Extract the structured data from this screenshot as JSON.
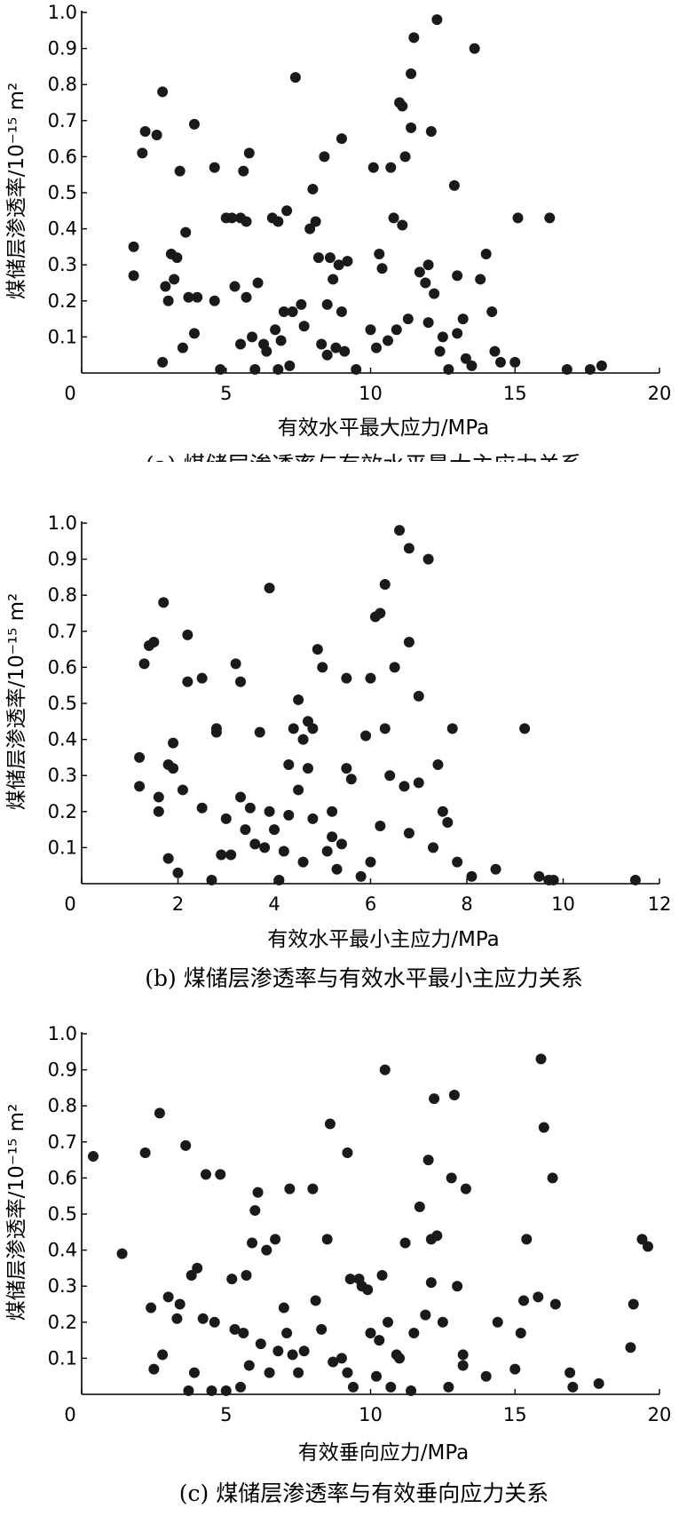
{
  "chart_data": [
    {
      "type": "scatter",
      "xlabel": "有效水平最大应力/MPa",
      "ylabel": "煤储层渗透率/10⁻¹⁵ m²",
      "caption": "(a) 煤储层渗透率与有效水平最大主应力关系",
      "xlim": [
        0,
        20
      ],
      "ylim": [
        0,
        1.0
      ],
      "xticks": [
        "0",
        "5",
        "10",
        "15",
        "20"
      ],
      "yticks": [
        "0.1",
        "0.2",
        "0.3",
        "0.4",
        "0.5",
        "0.6",
        "0.7",
        "0.8",
        "0.9",
        "1.0"
      ],
      "points": [
        [
          1.8,
          0.35
        ],
        [
          1.8,
          0.27
        ],
        [
          2.1,
          0.61
        ],
        [
          2.2,
          0.67
        ],
        [
          2.6,
          0.66
        ],
        [
          2.8,
          0.78
        ],
        [
          2.8,
          0.03
        ],
        [
          2.9,
          0.24
        ],
        [
          3.0,
          0.2
        ],
        [
          3.1,
          0.33
        ],
        [
          3.2,
          0.26
        ],
        [
          3.3,
          0.32
        ],
        [
          3.4,
          0.56
        ],
        [
          3.5,
          0.07
        ],
        [
          3.6,
          0.39
        ],
        [
          3.7,
          0.21
        ],
        [
          3.9,
          0.69
        ],
        [
          3.9,
          0.11
        ],
        [
          4.0,
          0.21
        ],
        [
          4.6,
          0.57
        ],
        [
          4.6,
          0.2
        ],
        [
          4.8,
          0.01
        ],
        [
          5.0,
          0.43
        ],
        [
          5.2,
          0.43
        ],
        [
          5.3,
          0.24
        ],
        [
          5.5,
          0.08
        ],
        [
          5.5,
          0.43
        ],
        [
          5.6,
          0.56
        ],
        [
          5.7,
          0.42
        ],
        [
          5.7,
          0.21
        ],
        [
          5.8,
          0.61
        ],
        [
          5.9,
          0.1
        ],
        [
          6.0,
          0.01
        ],
        [
          6.1,
          0.25
        ],
        [
          6.3,
          0.08
        ],
        [
          6.4,
          0.06
        ],
        [
          6.6,
          0.43
        ],
        [
          6.7,
          0.12
        ],
        [
          6.8,
          0.42
        ],
        [
          6.8,
          0.01
        ],
        [
          6.9,
          0.09
        ],
        [
          7.0,
          0.17
        ],
        [
          7.1,
          0.45
        ],
        [
          7.2,
          0.02
        ],
        [
          7.3,
          0.17
        ],
        [
          7.4,
          0.82
        ],
        [
          7.6,
          0.19
        ],
        [
          7.7,
          0.13
        ],
        [
          7.9,
          0.4
        ],
        [
          8.0,
          0.51
        ],
        [
          8.1,
          0.42
        ],
        [
          8.2,
          0.32
        ],
        [
          8.3,
          0.08
        ],
        [
          8.4,
          0.6
        ],
        [
          8.5,
          0.19
        ],
        [
          8.5,
          0.05
        ],
        [
          8.6,
          0.32
        ],
        [
          8.7,
          0.26
        ],
        [
          8.8,
          0.07
        ],
        [
          8.9,
          0.3
        ],
        [
          9.0,
          0.65
        ],
        [
          9.0,
          0.17
        ],
        [
          9.1,
          0.06
        ],
        [
          9.2,
          0.31
        ],
        [
          9.5,
          0.01
        ],
        [
          10.0,
          0.12
        ],
        [
          10.1,
          0.57
        ],
        [
          10.2,
          0.07
        ],
        [
          10.3,
          0.33
        ],
        [
          10.4,
          0.29
        ],
        [
          10.6,
          0.09
        ],
        [
          10.7,
          0.57
        ],
        [
          10.8,
          0.43
        ],
        [
          10.9,
          0.12
        ],
        [
          11.0,
          0.75
        ],
        [
          11.1,
          0.74
        ],
        [
          11.1,
          0.41
        ],
        [
          11.2,
          0.6
        ],
        [
          11.3,
          0.15
        ],
        [
          11.4,
          0.83
        ],
        [
          11.5,
          0.93
        ],
        [
          11.7,
          0.28
        ],
        [
          11.9,
          0.25
        ],
        [
          12.0,
          0.3
        ],
        [
          12.0,
          0.14
        ],
        [
          12.1,
          0.67
        ],
        [
          12.2,
          0.22
        ],
        [
          12.3,
          0.98
        ],
        [
          12.5,
          0.1
        ],
        [
          12.7,
          0.01
        ],
        [
          12.9,
          0.52
        ],
        [
          13.0,
          0.11
        ],
        [
          13.0,
          0.27
        ],
        [
          13.2,
          0.15
        ],
        [
          13.3,
          0.04
        ],
        [
          13.5,
          0.02
        ],
        [
          13.6,
          0.9
        ],
        [
          13.8,
          0.26
        ],
        [
          14.0,
          0.33
        ],
        [
          14.2,
          0.17
        ],
        [
          14.3,
          0.06
        ],
        [
          14.5,
          0.03
        ],
        [
          15.0,
          0.03
        ],
        [
          15.1,
          0.43
        ],
        [
          16.2,
          0.43
        ],
        [
          16.8,
          0.01
        ],
        [
          17.6,
          0.01
        ],
        [
          18.0,
          0.02
        ],
        [
          11.4,
          0.68
        ],
        [
          12.4,
          0.06
        ]
      ]
    },
    {
      "type": "scatter",
      "xlabel": "有效水平最小主应力/MPa",
      "ylabel": "煤储层渗透率/10⁻¹⁵ m²",
      "caption": "(b) 煤储层渗透率与有效水平最小主应力关系",
      "xlim": [
        0,
        12
      ],
      "ylim": [
        0,
        1.0
      ],
      "xticks": [
        "0",
        "2",
        "4",
        "6",
        "8",
        "10",
        "12"
      ],
      "yticks": [
        "0.1",
        "0.2",
        "0.3",
        "0.4",
        "0.5",
        "0.6",
        "0.7",
        "0.8",
        "0.9",
        "1.0"
      ],
      "points": [
        [
          1.2,
          0.35
        ],
        [
          1.2,
          0.27
        ],
        [
          1.3,
          0.61
        ],
        [
          1.4,
          0.66
        ],
        [
          1.5,
          0.67
        ],
        [
          1.6,
          0.2
        ],
        [
          1.6,
          0.24
        ],
        [
          1.7,
          0.78
        ],
        [
          1.8,
          0.07
        ],
        [
          1.8,
          0.33
        ],
        [
          1.9,
          0.32
        ],
        [
          1.9,
          0.39
        ],
        [
          2.0,
          0.03
        ],
        [
          2.1,
          0.26
        ],
        [
          2.2,
          0.69
        ],
        [
          2.2,
          0.56
        ],
        [
          2.5,
          0.21
        ],
        [
          2.5,
          0.57
        ],
        [
          2.7,
          0.01
        ],
        [
          2.8,
          0.43
        ],
        [
          2.8,
          0.42
        ],
        [
          2.9,
          0.08
        ],
        [
          3.0,
          0.18
        ],
        [
          3.1,
          0.08
        ],
        [
          3.2,
          0.61
        ],
        [
          3.3,
          0.24
        ],
        [
          3.3,
          0.56
        ],
        [
          3.4,
          0.15
        ],
        [
          3.5,
          0.21
        ],
        [
          3.6,
          0.11
        ],
        [
          3.7,
          0.42
        ],
        [
          3.8,
          0.1
        ],
        [
          3.9,
          0.2
        ],
        [
          3.9,
          0.82
        ],
        [
          4.0,
          0.15
        ],
        [
          4.1,
          0.01
        ],
        [
          4.2,
          0.09
        ],
        [
          4.3,
          0.33
        ],
        [
          4.3,
          0.19
        ],
        [
          4.4,
          0.43
        ],
        [
          4.5,
          0.51
        ],
        [
          4.5,
          0.26
        ],
        [
          4.6,
          0.06
        ],
        [
          4.6,
          0.4
        ],
        [
          4.7,
          0.45
        ],
        [
          4.7,
          0.32
        ],
        [
          4.8,
          0.43
        ],
        [
          4.8,
          0.18
        ],
        [
          4.9,
          0.65
        ],
        [
          5.0,
          0.6
        ],
        [
          5.1,
          0.09
        ],
        [
          5.2,
          0.2
        ],
        [
          5.3,
          0.04
        ],
        [
          5.4,
          0.11
        ],
        [
          5.5,
          0.57
        ],
        [
          5.5,
          0.32
        ],
        [
          5.6,
          0.29
        ],
        [
          5.8,
          0.02
        ],
        [
          5.9,
          0.41
        ],
        [
          6.0,
          0.57
        ],
        [
          6.1,
          0.74
        ],
        [
          6.2,
          0.75
        ],
        [
          6.2,
          0.16
        ],
        [
          6.3,
          0.43
        ],
        [
          6.3,
          0.83
        ],
        [
          6.4,
          0.3
        ],
        [
          6.5,
          0.6
        ],
        [
          6.6,
          0.98
        ],
        [
          6.7,
          0.27
        ],
        [
          6.8,
          0.67
        ],
        [
          6.8,
          0.93
        ],
        [
          7.0,
          0.28
        ],
        [
          7.0,
          0.52
        ],
        [
          7.2,
          0.9
        ],
        [
          7.3,
          0.1
        ],
        [
          7.4,
          0.33
        ],
        [
          7.5,
          0.2
        ],
        [
          7.6,
          0.17
        ],
        [
          7.7,
          0.43
        ],
        [
          7.8,
          0.06
        ],
        [
          8.1,
          0.02
        ],
        [
          8.6,
          0.04
        ],
        [
          9.2,
          0.43
        ],
        [
          9.5,
          0.02
        ],
        [
          9.7,
          0.01
        ],
        [
          9.8,
          0.01
        ],
        [
          11.5,
          0.01
        ],
        [
          6.8,
          0.14
        ],
        [
          6.0,
          0.06
        ],
        [
          5.2,
          0.13
        ]
      ]
    },
    {
      "type": "scatter",
      "xlabel": "有效垂向应力/MPa",
      "ylabel": "煤储层渗透率/10⁻¹⁵ m²",
      "caption": "(c) 煤储层渗透率与有效垂向应力关系",
      "xlim": [
        0,
        20
      ],
      "ylim": [
        0,
        1.0
      ],
      "xticks": [
        "0",
        "5",
        "10",
        "15",
        "20"
      ],
      "yticks": [
        "0.1",
        "0.2",
        "0.3",
        "0.4",
        "0.5",
        "0.6",
        "0.7",
        "0.8",
        "0.9",
        "1.0"
      ],
      "points": [
        [
          0.4,
          0.66
        ],
        [
          1.4,
          0.39
        ],
        [
          2.2,
          0.67
        ],
        [
          2.4,
          0.24
        ],
        [
          2.5,
          0.07
        ],
        [
          2.7,
          0.78
        ],
        [
          2.8,
          0.11
        ],
        [
          3.0,
          0.27
        ],
        [
          3.3,
          0.21
        ],
        [
          3.4,
          0.25
        ],
        [
          3.6,
          0.69
        ],
        [
          3.7,
          0.01
        ],
        [
          3.8,
          0.33
        ],
        [
          3.9,
          0.06
        ],
        [
          4.0,
          0.35
        ],
        [
          4.2,
          0.21
        ],
        [
          4.3,
          0.61
        ],
        [
          4.5,
          0.01
        ],
        [
          4.6,
          0.2
        ],
        [
          4.8,
          0.61
        ],
        [
          5.0,
          0.01
        ],
        [
          5.2,
          0.32
        ],
        [
          5.3,
          0.18
        ],
        [
          5.5,
          0.02
        ],
        [
          5.6,
          0.17
        ],
        [
          5.7,
          0.33
        ],
        [
          5.8,
          0.08
        ],
        [
          5.9,
          0.42
        ],
        [
          6.0,
          0.51
        ],
        [
          6.1,
          0.56
        ],
        [
          6.2,
          0.14
        ],
        [
          6.4,
          0.4
        ],
        [
          6.5,
          0.06
        ],
        [
          6.7,
          0.43
        ],
        [
          6.8,
          0.12
        ],
        [
          7.0,
          0.24
        ],
        [
          7.1,
          0.17
        ],
        [
          7.2,
          0.57
        ],
        [
          7.3,
          0.11
        ],
        [
          7.5,
          0.06
        ],
        [
          7.7,
          0.12
        ],
        [
          8.0,
          0.57
        ],
        [
          8.1,
          0.26
        ],
        [
          8.3,
          0.18
        ],
        [
          8.5,
          0.43
        ],
        [
          8.6,
          0.75
        ],
        [
          8.7,
          0.09
        ],
        [
          9.0,
          0.1
        ],
        [
          9.2,
          0.67
        ],
        [
          9.3,
          0.32
        ],
        [
          9.4,
          0.02
        ],
        [
          9.6,
          0.32
        ],
        [
          9.7,
          0.3
        ],
        [
          9.9,
          0.29
        ],
        [
          10.0,
          0.17
        ],
        [
          10.2,
          0.05
        ],
        [
          10.3,
          0.15
        ],
        [
          10.4,
          0.33
        ],
        [
          10.5,
          0.9
        ],
        [
          10.6,
          0.2
        ],
        [
          10.7,
          0.02
        ],
        [
          10.9,
          0.11
        ],
        [
          11.0,
          0.1
        ],
        [
          11.2,
          0.42
        ],
        [
          11.4,
          0.01
        ],
        [
          11.5,
          0.17
        ],
        [
          11.7,
          0.52
        ],
        [
          11.9,
          0.22
        ],
        [
          12.0,
          0.65
        ],
        [
          12.1,
          0.31
        ],
        [
          12.2,
          0.82
        ],
        [
          12.3,
          0.44
        ],
        [
          12.5,
          0.2
        ],
        [
          12.7,
          0.02
        ],
        [
          12.8,
          0.6
        ],
        [
          12.9,
          0.83
        ],
        [
          13.0,
          0.3
        ],
        [
          13.2,
          0.08
        ],
        [
          13.3,
          0.57
        ],
        [
          14.0,
          0.05
        ],
        [
          14.4,
          0.2
        ],
        [
          15.0,
          0.07
        ],
        [
          15.2,
          0.17
        ],
        [
          15.3,
          0.26
        ],
        [
          15.4,
          0.43
        ],
        [
          15.8,
          0.27
        ],
        [
          15.9,
          0.93
        ],
        [
          16.0,
          0.74
        ],
        [
          16.3,
          0.6
        ],
        [
          16.4,
          0.25
        ],
        [
          16.9,
          0.06
        ],
        [
          17.0,
          0.02
        ],
        [
          17.9,
          0.03
        ],
        [
          19.0,
          0.13
        ],
        [
          19.1,
          0.25
        ],
        [
          19.4,
          0.43
        ],
        [
          19.6,
          0.41
        ],
        [
          13.2,
          0.11
        ],
        [
          12.1,
          0.43
        ],
        [
          9.2,
          0.06
        ]
      ]
    }
  ]
}
